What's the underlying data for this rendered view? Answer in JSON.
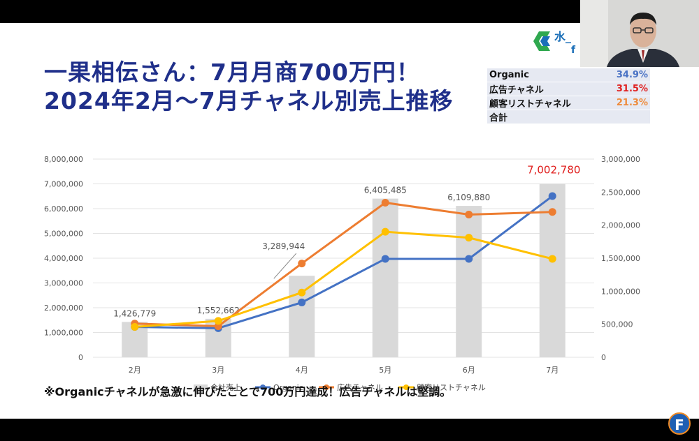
{
  "slide": {
    "title_line1": "一果相伝さん：7月月商700万円！",
    "title_line2": "2024年2月～7月チャネル別売上推移",
    "logo_text_1": "水_",
    "logo_text_2": "f",
    "note": "※Organicチャネルが急激に伸びたことで700万円達成！広告チャネルは堅調。",
    "badge": "F"
  },
  "share_table": [
    {
      "label": "Organic",
      "value": "34.9%",
      "color": "#4a72c4"
    },
    {
      "label": "広告チャネル",
      "value": "31.5%",
      "color": "#e0201f"
    },
    {
      "label": "顧客リストチャネル",
      "value": "21.3%",
      "color": "#ee8a3a"
    },
    {
      "label": "合計",
      "value": "",
      "color": "#111111"
    }
  ],
  "chart_data": {
    "type": "bar+line",
    "categories": [
      "2月",
      "3月",
      "4月",
      "5月",
      "6月",
      "7月"
    ],
    "bars": {
      "name": "合計売上",
      "values": [
        1426779,
        1552662,
        3289944,
        6405485,
        6109880,
        7002780
      ],
      "labels": [
        "1,426,779",
        "1,552,662",
        "3,289,944",
        "6,405,485",
        "6,109,880",
        "7,002,780"
      ],
      "color": "#d9d9d9"
    },
    "series": [
      {
        "name": "Organic",
        "color": "#4472c4",
        "values": [
          460000,
          440000,
          830000,
          1490000,
          1490000,
          2440000
        ]
      },
      {
        "name": "広告チャネル",
        "color": "#ed7d31",
        "values": [
          510000,
          470000,
          1420000,
          2340000,
          2160000,
          2200000
        ]
      },
      {
        "name": "顧客リストチャネル",
        "color": "#ffc000",
        "values": [
          460000,
          550000,
          980000,
          1900000,
          1810000,
          1490000
        ]
      }
    ],
    "y_left": {
      "min": 0,
      "max": 8000000,
      "ticks": [
        "0",
        "1,000,000",
        "2,000,000",
        "3,000,000",
        "4,000,000",
        "5,000,000",
        "6,000,000",
        "7,000,000",
        "8,000,000"
      ]
    },
    "y_right": {
      "min": 0,
      "max": 3000000,
      "ticks": [
        "0",
        "500,000",
        "1,000,000",
        "1,500,000",
        "2,000,000",
        "2,500,000",
        "3,000,000"
      ]
    },
    "highlight_label": "7,002,780",
    "highlight_color": "#e0201f",
    "grid": true,
    "legend_position": "bottom"
  }
}
